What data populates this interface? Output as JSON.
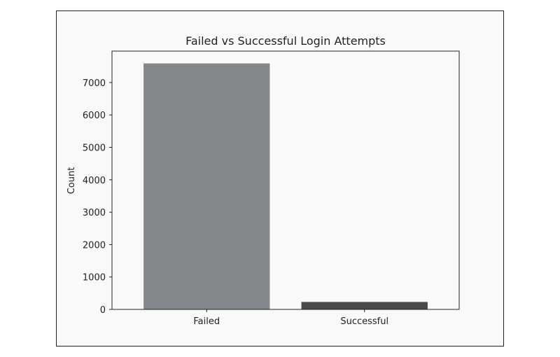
{
  "chart_data": {
    "type": "bar",
    "title": "Failed vs Successful Login Attempts",
    "xlabel": "",
    "ylabel": "Count",
    "categories": [
      "Failed",
      "Successful"
    ],
    "values": [
      7590,
      230
    ],
    "ylim": [
      0,
      7970
    ],
    "yticks": [
      0,
      1000,
      2000,
      3000,
      4000,
      5000,
      6000,
      7000
    ],
    "colors": [
      "#84878b",
      "#4a484b"
    ],
    "grid": false,
    "legend": "none"
  }
}
